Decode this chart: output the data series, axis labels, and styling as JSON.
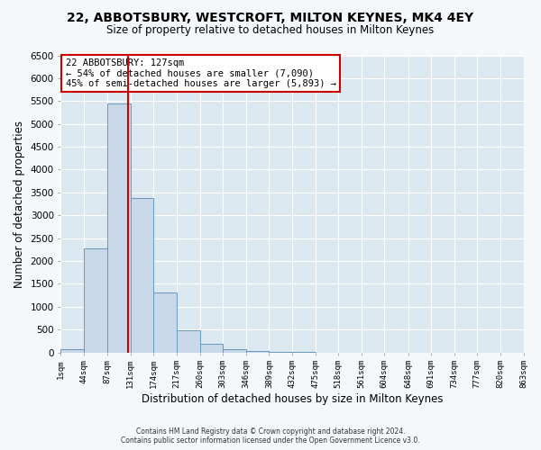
{
  "title": "22, ABBOTSBURY, WESTCROFT, MILTON KEYNES, MK4 4EY",
  "subtitle": "Size of property relative to detached houses in Milton Keynes",
  "xlabel": "Distribution of detached houses by size in Milton Keynes",
  "ylabel": "Number of detached properties",
  "bar_color": "#c8d8e8",
  "bar_edge_color": "#6699bb",
  "plot_bg_color": "#dce8f0",
  "fig_bg_color": "#f5f8fa",
  "grid_color": "#ffffff",
  "vline_x": 127,
  "vline_color": "#cc0000",
  "bin_edges": [
    1,
    44,
    87,
    131,
    174,
    217,
    260,
    303,
    346,
    389,
    432,
    475,
    518,
    561,
    604,
    648,
    691,
    734,
    777,
    820,
    863
  ],
  "bin_labels": [
    "1sqm",
    "44sqm",
    "87sqm",
    "131sqm",
    "174sqm",
    "217sqm",
    "260sqm",
    "303sqm",
    "346sqm",
    "389sqm",
    "432sqm",
    "475sqm",
    "518sqm",
    "561sqm",
    "604sqm",
    "648sqm",
    "691sqm",
    "734sqm",
    "777sqm",
    "820sqm",
    "863sqm"
  ],
  "bar_heights": [
    75,
    2280,
    5450,
    3380,
    1320,
    480,
    185,
    75,
    30,
    10,
    5,
    0,
    0,
    0,
    0,
    0,
    0,
    0,
    0,
    0
  ],
  "ylim": [
    0,
    6500
  ],
  "yticks": [
    0,
    500,
    1000,
    1500,
    2000,
    2500,
    3000,
    3500,
    4000,
    4500,
    5000,
    5500,
    6000,
    6500
  ],
  "annotation_title": "22 ABBOTSBURY: 127sqm",
  "annotation_line1": "← 54% of detached houses are smaller (7,090)",
  "annotation_line2": "45% of semi-detached houses are larger (5,893) →",
  "annotation_box_color": "#ffffff",
  "annotation_box_edge_color": "#cc0000",
  "footer_line1": "Contains HM Land Registry data © Crown copyright and database right 2024.",
  "footer_line2": "Contains public sector information licensed under the Open Government Licence v3.0."
}
